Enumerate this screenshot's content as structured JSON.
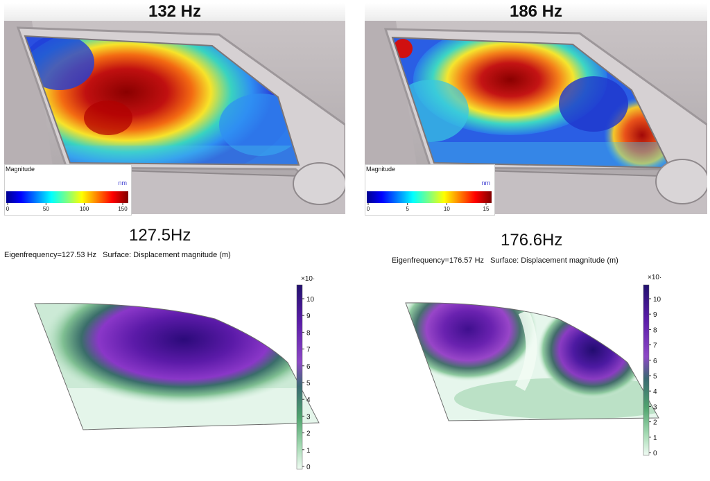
{
  "measured": [
    {
      "title": "132 Hz",
      "legend": {
        "label": "Magnitude",
        "unit": "nm",
        "ticks": [
          "0",
          "50",
          "100",
          "150"
        ]
      }
    },
    {
      "title": "186 Hz",
      "legend": {
        "label": "Magnitude",
        "unit": "nm",
        "ticks": [
          "0",
          "5",
          "10",
          "15"
        ]
      }
    }
  ],
  "simulated": [
    {
      "title": "127.5Hz",
      "caption": "Eigenfrequency=127.53 Hz   Surface: Displacement magnitude (m)",
      "colorbar": {
        "exponent": "×10·",
        "ticks": [
          "10",
          "9",
          "8",
          "7",
          "6",
          "5",
          "4",
          "3",
          "2",
          "1",
          "0"
        ]
      }
    },
    {
      "title": "176.6Hz",
      "caption": "Eigenfrequency=176.57 Hz   Surface: Displacement magnitude (m)",
      "colorbar": {
        "exponent": "×10·",
        "ticks": [
          "10",
          "9",
          "8",
          "7",
          "6",
          "5",
          "4",
          "3",
          "2",
          "1",
          "0"
        ]
      }
    }
  ]
}
